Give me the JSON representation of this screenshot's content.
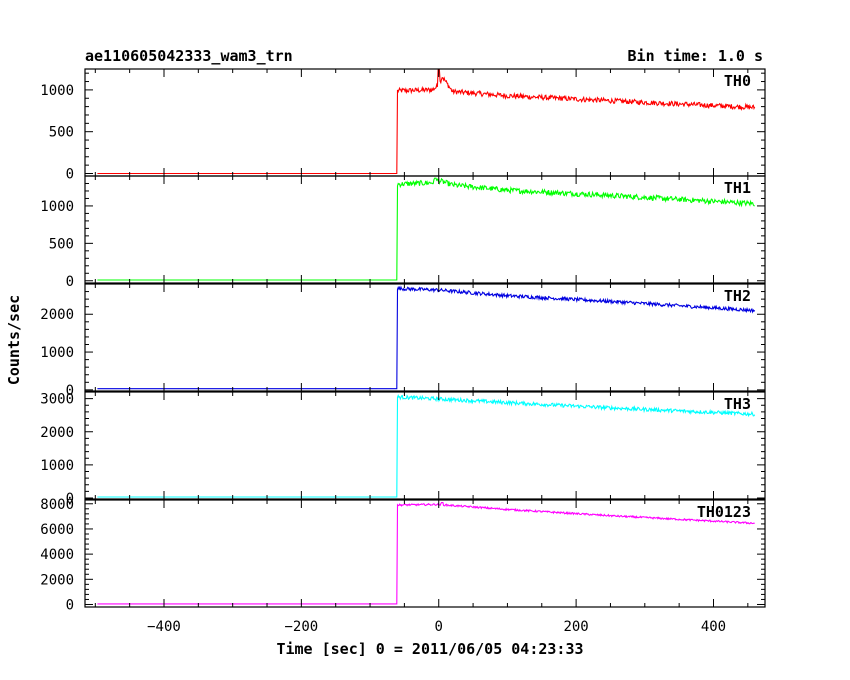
{
  "chart_data": {
    "type": "line",
    "title": "ae110605042333_wam3_trn",
    "subtitle": "Bin time: 1.0 s",
    "xlabel": "Time [sec] 0 = 2011/06/05 04:23:33",
    "ylabel": "Counts/sec",
    "xlim": [
      -515,
      475
    ],
    "xticks": [
      -400,
      -200,
      0,
      200,
      400
    ],
    "x_start": -497,
    "x_end": 460,
    "trigger_x": -60,
    "grid": false,
    "legend": "per-panel label top-right",
    "panels": [
      {
        "name": "TH0",
        "color": "#ff0000",
        "ylim": [
          -30,
          1250
        ],
        "yticks": [
          0,
          500,
          1000
        ],
        "baseline": 0,
        "profile": [
          [
            -60,
            990
          ],
          [
            -10,
            1000
          ],
          [
            0,
            1050
          ],
          [
            5,
            1160
          ],
          [
            20,
            980
          ],
          [
            100,
            930
          ],
          [
            250,
            870
          ],
          [
            460,
            790
          ]
        ],
        "peak": [
          0,
          1240
        ],
        "noise": 30
      },
      {
        "name": "TH1",
        "color": "#00ff00",
        "ylim": [
          -30,
          1400
        ],
        "yticks": [
          0,
          500,
          1000
        ],
        "baseline": 10,
        "profile": [
          [
            -60,
            1290
          ],
          [
            -10,
            1310
          ],
          [
            0,
            1340
          ],
          [
            20,
            1280
          ],
          [
            100,
            1210
          ],
          [
            250,
            1140
          ],
          [
            460,
            1030
          ]
        ],
        "peak": [
          -5,
          1370
        ],
        "noise": 35
      },
      {
        "name": "TH2",
        "color": "#0000e0",
        "ylim": [
          -30,
          2800
        ],
        "yticks": [
          0,
          1000,
          2000
        ],
        "baseline": 30,
        "profile": [
          [
            -60,
            2680
          ],
          [
            0,
            2640
          ],
          [
            100,
            2490
          ],
          [
            250,
            2340
          ],
          [
            460,
            2100
          ]
        ],
        "noise": 45
      },
      {
        "name": "TH3",
        "color": "#00ffff",
        "ylim": [
          -30,
          3200
        ],
        "yticks": [
          0,
          1000,
          2000,
          3000
        ],
        "baseline": 30,
        "profile": [
          [
            -60,
            3050
          ],
          [
            0,
            2990
          ],
          [
            100,
            2880
          ],
          [
            250,
            2720
          ],
          [
            460,
            2530
          ]
        ],
        "noise": 55
      },
      {
        "name": "TH0123",
        "color": "#ff00ff",
        "ylim": [
          -200,
          8300
        ],
        "yticks": [
          0,
          2000,
          4000,
          6000,
          8000
        ],
        "baseline": 50,
        "profile": [
          [
            -60,
            7900
          ],
          [
            0,
            7950
          ],
          [
            10,
            7900
          ],
          [
            100,
            7550
          ],
          [
            250,
            7050
          ],
          [
            460,
            6450
          ]
        ],
        "peak": [
          5,
          8100
        ],
        "noise": 70
      }
    ]
  }
}
